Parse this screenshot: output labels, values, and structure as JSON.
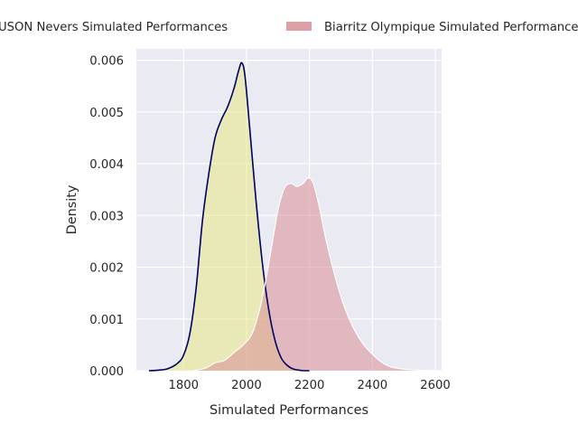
{
  "chart_data": {
    "type": "area",
    "title": "",
    "xlabel": "Simulated Performances",
    "ylabel": "Density",
    "xlim": [
      1650,
      2620
    ],
    "ylim": [
      0,
      0.00622
    ],
    "x_ticks": [
      1800,
      2000,
      2200,
      2400,
      2600
    ],
    "x_tick_labels": [
      "1800",
      "2000",
      "2200",
      "2400",
      "2600"
    ],
    "y_ticks": [
      0,
      0.001,
      0.002,
      0.003,
      0.004,
      0.005,
      0.006
    ],
    "y_tick_labels": [
      "0.000",
      "0.001",
      "0.002",
      "0.003",
      "0.004",
      "0.005",
      "0.006"
    ],
    "grid": true,
    "legend_position": "top",
    "series": [
      {
        "name": "USON Nevers Simulated Performances",
        "fill_color": "#e8e887",
        "line_color": "#000066",
        "x": [
          1690,
          1720,
          1750,
          1780,
          1800,
          1820,
          1840,
          1860,
          1880,
          1900,
          1920,
          1940,
          1960,
          1975,
          1985,
          1995,
          2010,
          2030,
          2050,
          2070,
          2090,
          2110,
          2130,
          2150,
          2180,
          2200
        ],
        "y": [
          0.0,
          1e-05,
          4e-05,
          0.00014,
          0.0003,
          0.00072,
          0.0016,
          0.0029,
          0.0038,
          0.0045,
          0.00485,
          0.0051,
          0.00545,
          0.0058,
          0.00595,
          0.0057,
          0.0047,
          0.0033,
          0.0021,
          0.0012,
          0.0006,
          0.00025,
          0.0001,
          3e-05,
          0.0,
          0.0
        ]
      },
      {
        "name": "Biarritz Olympique Simulated Performances",
        "fill_color": "#d98e96",
        "line_color": "#ffffff",
        "x": [
          1830,
          1870,
          1900,
          1930,
          1960,
          1990,
          2020,
          2050,
          2080,
          2100,
          2120,
          2140,
          2160,
          2180,
          2195,
          2210,
          2230,
          2250,
          2280,
          2310,
          2340,
          2370,
          2400,
          2430,
          2460,
          2500,
          2550,
          2600
        ],
        "y": [
          0.0,
          5e-05,
          0.00015,
          0.0002,
          0.00035,
          0.0005,
          0.00075,
          0.0014,
          0.0024,
          0.0031,
          0.00352,
          0.00362,
          0.00356,
          0.00362,
          0.00372,
          0.00365,
          0.0032,
          0.0026,
          0.00185,
          0.00125,
          0.00082,
          0.00052,
          0.00032,
          0.00016,
          7e-05,
          3e-05,
          1e-05,
          0.0
        ]
      }
    ]
  }
}
